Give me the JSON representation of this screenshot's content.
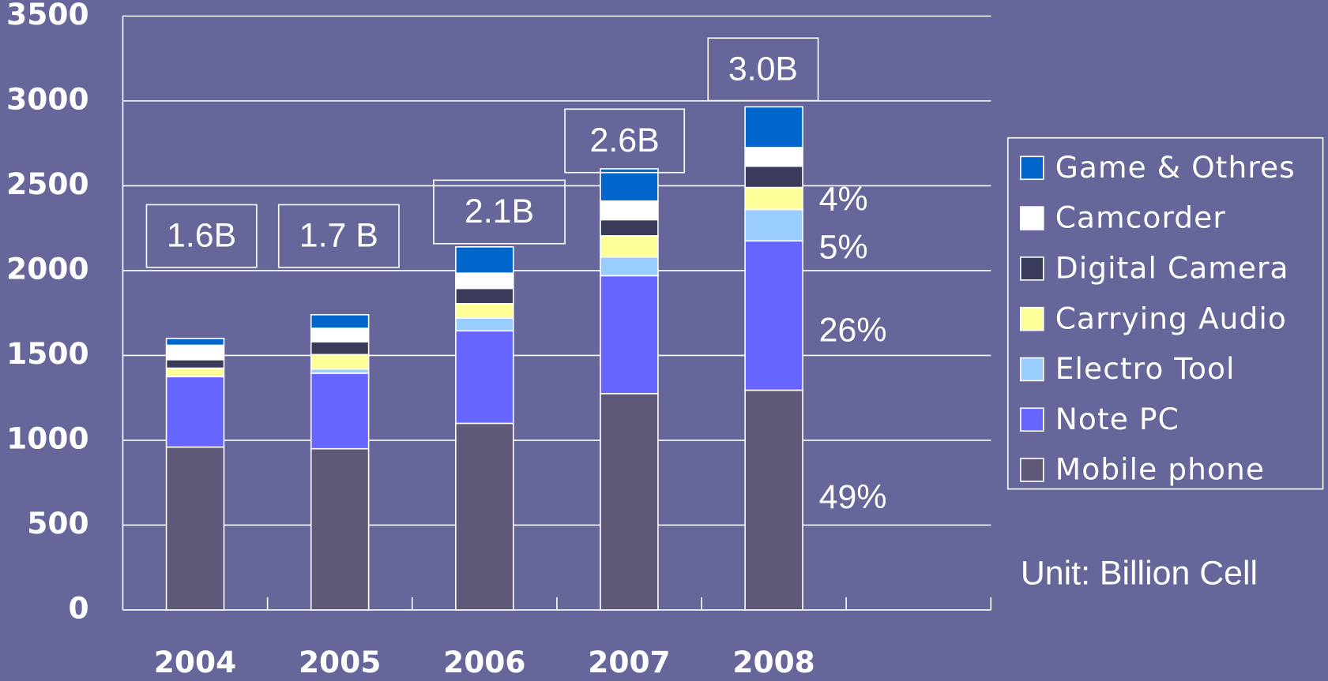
{
  "chart_data": {
    "type": "bar",
    "stacked": true,
    "categories": [
      "2004",
      "2005",
      "2006",
      "2007",
      "2008",
      null
    ],
    "series": [
      {
        "name": "Mobile phone",
        "color": "#605878",
        "values": [
          960,
          950,
          1100,
          1275,
          1295,
          null
        ]
      },
      {
        "name": "Note PC",
        "color": "#6666ff",
        "values": [
          415,
          445,
          545,
          695,
          880,
          null
        ]
      },
      {
        "name": "Electro Tool",
        "color": "#99ccff",
        "values": [
          0,
          25,
          75,
          110,
          185,
          null
        ]
      },
      {
        "name": "Carrying Audio",
        "color": "#ffff99",
        "values": [
          50,
          85,
          85,
          125,
          130,
          null
        ]
      },
      {
        "name": "Digital Camera",
        "color": "#3a3a5a",
        "values": [
          50,
          75,
          90,
          95,
          125,
          null
        ]
      },
      {
        "name": "Camcorder",
        "color": "#ffffff",
        "values": [
          85,
          80,
          90,
          110,
          110,
          null
        ]
      },
      {
        "name": "Game & Othres",
        "color": "#0066cc",
        "values": [
          40,
          80,
          155,
          190,
          240,
          null
        ]
      }
    ],
    "ylim": [
      0,
      3500
    ],
    "yticks": [
      0,
      500,
      1000,
      1500,
      2000,
      2500,
      3000,
      3500
    ],
    "grid": true,
    "legend": "right",
    "total_labels": [
      "1.6B",
      "1.7 B",
      "2.1B",
      "2.6B",
      "3.0B"
    ],
    "share_labels": [
      "4%",
      "5%",
      "26%",
      "49%"
    ],
    "unit_label": "Unit: Billion Cell"
  }
}
